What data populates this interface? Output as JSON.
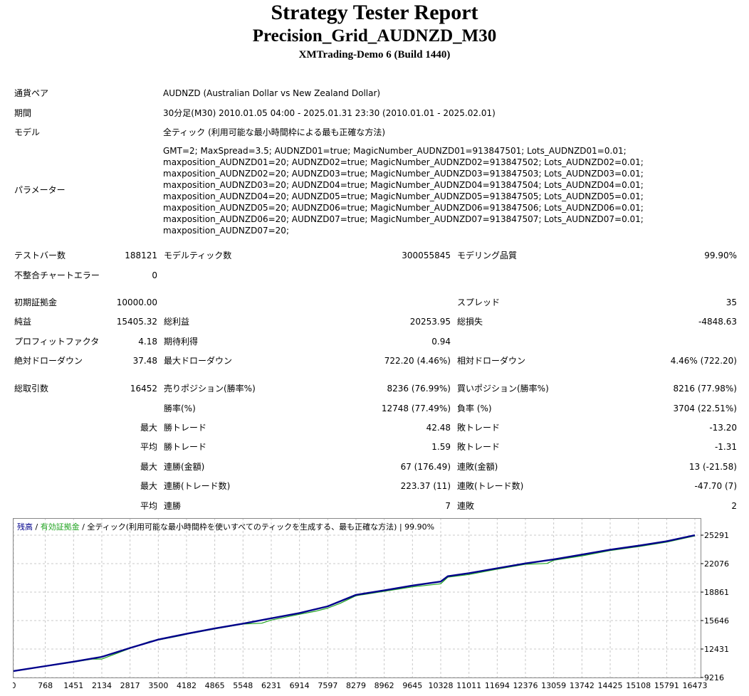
{
  "header": {
    "title": "Strategy Tester Report",
    "ea_name": "Precision_Grid_AUDNZD_M30",
    "server": "XMTrading-Demo 6 (Build 1440)"
  },
  "info": {
    "symbol_label": "通貨ペア",
    "symbol_value": "AUDNZD (Australian Dollar vs New Zealand Dollar)",
    "period_label": "期間",
    "period_value": "30分足(M30) 2010.01.05 04:00 - 2025.01.31 23:30 (2010.01.01 - 2025.02.01)",
    "model_label": "モデル",
    "model_value": "全ティック (利用可能な最小時間枠による最も正確な方法)",
    "params_label": "パラメーター",
    "params_lines": [
      "GMT=2; MaxSpread=3.5; AUDNZD01=true; MagicNumber_AUDNZD01=913847501; Lots_AUDNZD01=0.01;",
      "maxposition_AUDNZD01=20; AUDNZD02=true; MagicNumber_AUDNZD02=913847502; Lots_AUDNZD02=0.01;",
      "maxposition_AUDNZD02=20; AUDNZD03=true; MagicNumber_AUDNZD03=913847503; Lots_AUDNZD03=0.01;",
      "maxposition_AUDNZD03=20; AUDNZD04=true; MagicNumber_AUDNZD04=913847504; Lots_AUDNZD04=0.01;",
      "maxposition_AUDNZD04=20; AUDNZD05=true; MagicNumber_AUDNZD05=913847505; Lots_AUDNZD05=0.01;",
      "maxposition_AUDNZD05=20; AUDNZD06=true; MagicNumber_AUDNZD06=913847506; Lots_AUDNZD06=0.01;",
      "maxposition_AUDNZD06=20; AUDNZD07=true; MagicNumber_AUDNZD07=913847507; Lots_AUDNZD07=0.01;",
      "maxposition_AUDNZD07=20;"
    ]
  },
  "stats": {
    "bars_label": "テストバー数",
    "bars_value": "188121",
    "ticks_label": "モデルティック数",
    "ticks_value": "300055845",
    "quality_label": "モデリング品質",
    "quality_value": "99.90%",
    "mismatch_label": "不整合チャートエラー",
    "mismatch_value": "0",
    "deposit_label": "初期証拠金",
    "deposit_value": "10000.00",
    "spread_label": "スプレッド",
    "spread_value": "35",
    "net_label": "純益",
    "net_value": "15405.32",
    "gross_profit_label": "総利益",
    "gross_profit_value": "20253.95",
    "gross_loss_label": "総損失",
    "gross_loss_value": "-4848.63",
    "pf_label": "プロフィットファクタ",
    "pf_value": "4.18",
    "expected_label": "期待利得",
    "expected_value": "0.94",
    "abs_dd_label": "絶対ドローダウン",
    "abs_dd_value": "37.48",
    "max_dd_label": "最大ドローダウン",
    "max_dd_value": "722.20 (4.46%)",
    "rel_dd_label": "相対ドローダウン",
    "rel_dd_value": "4.46% (722.20)",
    "total_trades_label": "総取引数",
    "total_trades_value": "16452",
    "short_label": "売りポジション(勝率%)",
    "short_value": "8236 (76.99%)",
    "long_label": "買いポジション(勝率%)",
    "long_value": "8216 (77.98%)",
    "win_rate_label": "勝率(%)",
    "win_rate_value": "12748 (77.49%)",
    "loss_rate_label": "負率 (%)",
    "loss_rate_value": "3704 (22.51%)",
    "max_prefix": "最大",
    "avg_prefix": "平均",
    "win_trade_label": "勝トレード",
    "loss_trade_label": "敗トレード",
    "largest_win_value": "42.48",
    "largest_loss_value": "-13.20",
    "avg_win_value": "1.59",
    "avg_loss_value": "-1.31",
    "consec_win_amt_label": "連勝(金額)",
    "consec_win_amt_value": "67 (176.49)",
    "consec_loss_amt_label": "連敗(金額)",
    "consec_loss_amt_value": "13 (-21.58)",
    "consec_win_cnt_label": "連勝(トレード数)",
    "consec_win_cnt_value": "223.37 (11)",
    "consec_loss_cnt_label": "連敗(トレード数)",
    "consec_loss_cnt_value": "-47.70 (7)",
    "avg_consec_win_label": "連勝",
    "avg_consec_win_value": "7",
    "avg_consec_loss_label": "連敗",
    "avg_consec_loss_value": "2"
  },
  "chart_data": {
    "type": "line",
    "legend": {
      "balance": "残高",
      "sep1": " / ",
      "equity": "有効証拠金",
      "sep2": " / ",
      "model": "全ティック(利用可能な最小時間枠を使いすべてのティックを生成する、最も正確な方法)",
      "sep3": " | ",
      "quality": "99.90%"
    },
    "x_ticks": [
      0,
      768,
      1451,
      2134,
      2817,
      3500,
      4182,
      4865,
      5548,
      6231,
      6914,
      7597,
      8279,
      8962,
      9645,
      10328,
      11011,
      11694,
      12376,
      13059,
      13742,
      14425,
      15108,
      15791,
      16473
    ],
    "y_ticks": [
      9216,
      12431,
      15646,
      18861,
      22076,
      25291
    ],
    "xlim": [
      0,
      16473
    ],
    "ylim": [
      9216,
      25291
    ],
    "grid": true,
    "colors": {
      "balance": "#00008b",
      "equity": "#1fa31f",
      "grid": "#c8c8c8"
    },
    "series": [
      {
        "name": "残高",
        "x": [
          0,
          768,
          1451,
          2134,
          2817,
          3500,
          4182,
          4865,
          5548,
          6231,
          6914,
          7597,
          8279,
          8962,
          9645,
          10328,
          10500,
          11011,
          11694,
          12376,
          13059,
          13742,
          14425,
          15108,
          15791,
          16473
        ],
        "y": [
          9950,
          10500,
          11000,
          11550,
          12550,
          13500,
          14150,
          14750,
          15300,
          15900,
          16500,
          17250,
          18550,
          19050,
          19600,
          20050,
          20650,
          21000,
          21550,
          22100,
          22550,
          23100,
          23650,
          24100,
          24600,
          25291
        ]
      },
      {
        "name": "有効証拠金",
        "x": [
          0,
          768,
          1451,
          1900,
          2134,
          2817,
          3300,
          3500,
          4000,
          4182,
          4865,
          5548,
          6000,
          6231,
          6914,
          7300,
          7597,
          7900,
          8279,
          8962,
          9645,
          10328,
          10500,
          11011,
          11694,
          12376,
          12900,
          13059,
          13742,
          14425,
          15108,
          15791,
          16473
        ],
        "y": [
          9930,
          10480,
          10950,
          11300,
          11300,
          12500,
          13300,
          13450,
          13900,
          14100,
          14700,
          15250,
          15350,
          15700,
          16350,
          16700,
          17050,
          17600,
          18450,
          18950,
          19450,
          19800,
          20550,
          20850,
          21450,
          22000,
          22100,
          22450,
          22950,
          23550,
          24000,
          24500,
          25200
        ]
      }
    ]
  }
}
